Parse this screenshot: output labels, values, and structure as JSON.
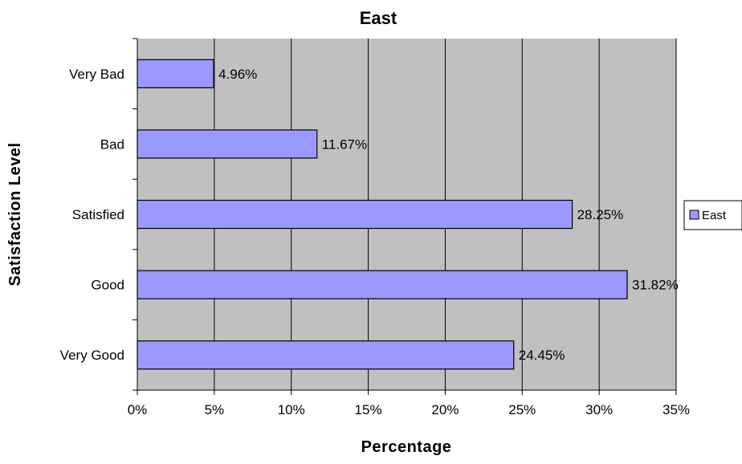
{
  "chart_data": {
    "type": "bar",
    "orientation": "horizontal",
    "title": "East",
    "xlabel": "Percentage",
    "ylabel": "Satisfaction Level",
    "categories": [
      "Very Bad",
      "Bad",
      "Satisfied",
      "Good",
      "Very Good"
    ],
    "series": [
      {
        "name": "East",
        "values": [
          4.96,
          11.67,
          28.25,
          31.82,
          24.45
        ],
        "labels": [
          "4.96%",
          "11.67%",
          "28.25%",
          "31.82%",
          "24.45%"
        ]
      }
    ],
    "xlim": [
      0,
      35
    ],
    "xticks": [
      0,
      5,
      10,
      15,
      20,
      25,
      30,
      35
    ],
    "xtick_labels": [
      "0%",
      "5%",
      "10%",
      "15%",
      "20%",
      "25%",
      "30%",
      "35%"
    ],
    "grid": "vertical",
    "legend_position": "right",
    "colors": {
      "bar_fill": "#9999ff",
      "bar_stroke": "#000000",
      "plot_background": "#c0c0c0",
      "gridline": "#000000"
    }
  }
}
